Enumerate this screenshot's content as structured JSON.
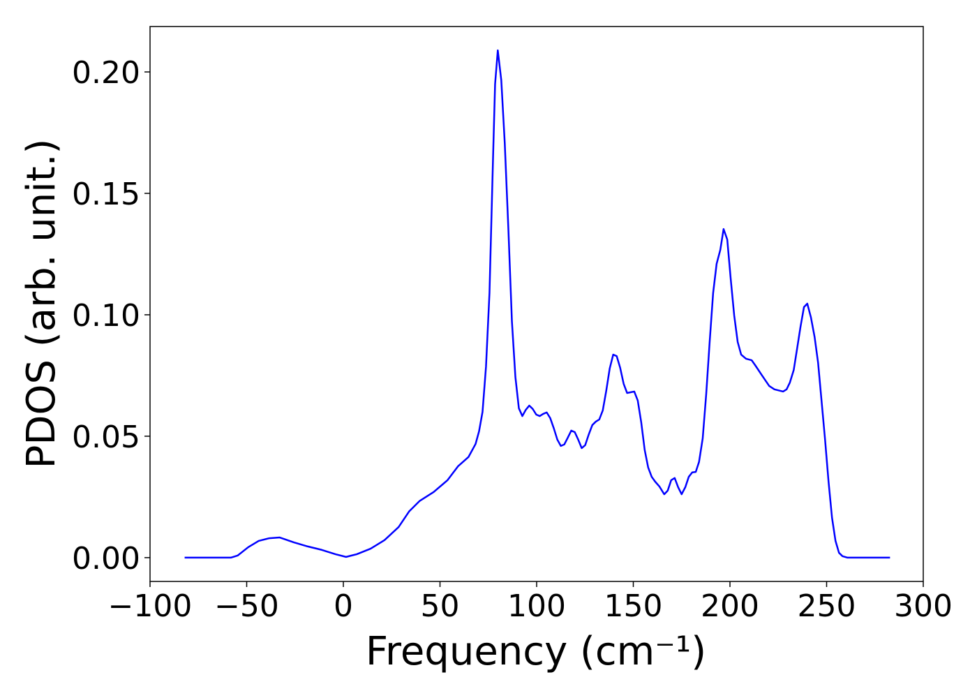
{
  "chart_data": {
    "type": "line",
    "xlabel": "Frequency (cm⁻¹)",
    "ylabel": "PDOS (arb. unit.)",
    "xlim": [
      -100,
      300
    ],
    "ylim": [
      -0.0098,
      0.2187
    ],
    "xticks": [
      {
        "value": -100,
        "label": "−100"
      },
      {
        "value": -50,
        "label": "−50"
      },
      0,
      50,
      100,
      150,
      200,
      250,
      300
    ],
    "yticks": [
      {
        "value": 0,
        "label": "0.00"
      },
      {
        "value": 0.05,
        "label": "0.05"
      },
      {
        "value": 0.1,
        "label": "0.10"
      },
      {
        "value": 0.15,
        "label": "0.15"
      },
      {
        "value": 0.2,
        "label": "0.20"
      }
    ],
    "grid": false,
    "series": [
      {
        "color": "#0000ff",
        "x": [
          -82.1,
          -58.2,
          -54.6,
          -49.2,
          -43.8,
          -38.3,
          -32.9,
          -25.7,
          -18.4,
          -11.2,
          -4,
          1.4,
          6.9,
          14.1,
          21.3,
          28.6,
          34,
          39.4,
          46.7,
          53.9,
          59.3,
          64.7,
          68.4,
          70.2,
          72,
          73.8,
          75.6,
          77.4,
          78.5,
          79.9,
          81.7,
          83.5,
          85.4,
          87.2,
          89,
          90.8,
          92.6,
          94.4,
          96.2,
          98,
          99.8,
          101.6,
          103.4,
          105.2,
          107,
          108.9,
          110.7,
          112.5,
          114.3,
          116.1,
          117.9,
          119.7,
          121.5,
          123.3,
          125.1,
          126.9,
          128.8,
          130.6,
          132.4,
          134.2,
          136,
          137.8,
          139.6,
          141.4,
          143.2,
          145,
          146.8,
          148.6,
          150.5,
          152.3,
          154.1,
          155.9,
          157.7,
          159.5,
          161.3,
          163.5,
          166,
          167.8,
          169.6,
          171.4,
          173.2,
          175,
          176.9,
          178.7,
          180.5,
          182.3,
          184,
          185.9,
          187.7,
          189.5,
          191.3,
          193.1,
          195,
          196.7,
          198.6,
          200.4,
          202.2,
          204,
          205.8,
          208.3,
          211.2,
          213,
          216.6,
          220.3,
          223,
          227.5,
          229.3,
          231,
          233,
          234.7,
          236.5,
          238.3,
          240,
          241.9,
          243.8,
          245.6,
          247.4,
          249.2,
          251,
          252.8,
          254.6,
          256.4,
          258.2,
          260.8,
          282.8
        ],
        "values": [
          0,
          0,
          0.0009,
          0.0043,
          0.0069,
          0.008,
          0.0083,
          0.0063,
          0.0046,
          0.0032,
          0.0014,
          0.0003,
          0.0014,
          0.0037,
          0.0072,
          0.0126,
          0.019,
          0.0233,
          0.027,
          0.0319,
          0.0376,
          0.0414,
          0.0468,
          0.052,
          0.06,
          0.0787,
          0.109,
          0.1635,
          0.195,
          0.2089,
          0.1966,
          0.1707,
          0.1348,
          0.0974,
          0.0744,
          0.0615,
          0.0583,
          0.0609,
          0.0626,
          0.0612,
          0.0589,
          0.0583,
          0.0592,
          0.0598,
          0.0575,
          0.0532,
          0.0486,
          0.046,
          0.0466,
          0.0494,
          0.0523,
          0.0517,
          0.0486,
          0.0451,
          0.0463,
          0.0506,
          0.0546,
          0.056,
          0.0569,
          0.0606,
          0.0687,
          0.0779,
          0.0836,
          0.083,
          0.0782,
          0.0716,
          0.0678,
          0.0681,
          0.0684,
          0.0647,
          0.0557,
          0.0443,
          0.0371,
          0.0333,
          0.0313,
          0.0293,
          0.0261,
          0.0276,
          0.0319,
          0.0328,
          0.029,
          0.0261,
          0.029,
          0.0333,
          0.0351,
          0.0353,
          0.0394,
          0.0491,
          0.0672,
          0.0888,
          0.109,
          0.121,
          0.1267,
          0.1353,
          0.131,
          0.1147,
          0.0997,
          0.0888,
          0.0836,
          0.0819,
          0.0813,
          0.0793,
          0.075,
          0.0707,
          0.0693,
          0.0684,
          0.0693,
          0.0721,
          0.0773,
          0.0859,
          0.0951,
          0.1032,
          0.1046,
          0.0989,
          0.0908,
          0.0802,
          0.0644,
          0.0486,
          0.0313,
          0.0164,
          0.0069,
          0.002,
          0.0006,
          0,
          0
        ]
      }
    ]
  }
}
